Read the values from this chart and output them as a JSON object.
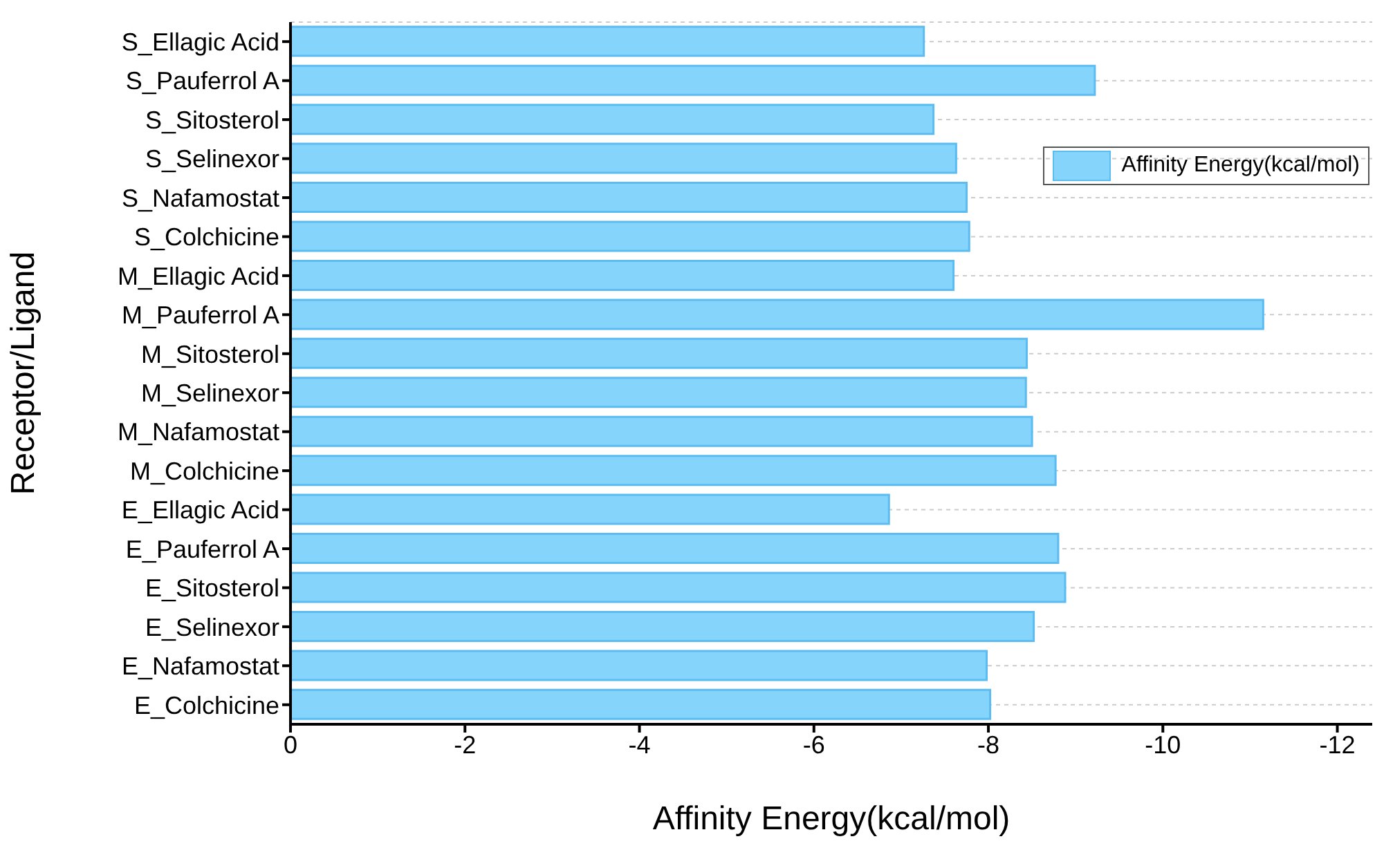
{
  "chart_data": {
    "type": "bar",
    "orientation": "horizontal",
    "xlabel": "Affinity Energy(kcal/mol)",
    "ylabel": "Receptor/Ligand",
    "categories": [
      "S_Ellagic Acid",
      "S_Pauferrol A",
      "S_Sitosterol",
      "S_Selinexor",
      "S_Nafamostat",
      "S_Colchicine",
      "M_Ellagic Acid",
      "M_Pauferrol A",
      "M_Sitosterol",
      "M_Selinexor",
      "M_Nafamostat",
      "M_Colchicine",
      "E_Ellagic Acid",
      "E_Pauferrol A",
      "E_Sitosterol",
      "E_Selinexor",
      "E_Nafamostat",
      "E_Colchicine"
    ],
    "series": [
      {
        "name": "Affinity Energy(kcal/mol)",
        "color": "#84d4fc",
        "values": [
          -7.26,
          -9.22,
          -7.37,
          -7.63,
          -7.75,
          -7.78,
          -7.6,
          -11.15,
          -8.44,
          -8.43,
          -8.5,
          -8.77,
          -6.86,
          -8.8,
          -8.88,
          -8.52,
          -7.98,
          -8.02
        ]
      }
    ],
    "xlim": [
      0,
      -12.4
    ],
    "xticks": [
      0,
      -2,
      -4,
      -6,
      -8,
      -10,
      -12
    ],
    "grid": "y",
    "legend": "top right"
  }
}
